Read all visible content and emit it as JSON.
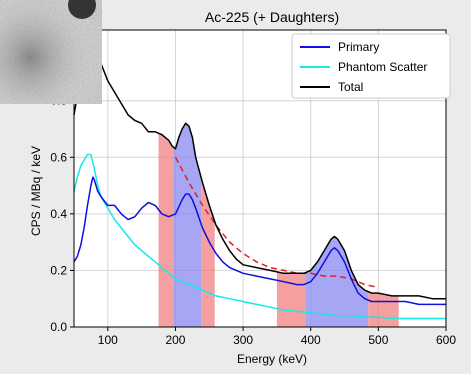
{
  "chart_data": {
    "type": "line",
    "title": "Ac-225 (+ Daughters)",
    "xlabel": "Energy (keV)",
    "ylabel": "CPS / MBq / keV",
    "xlim": [
      50,
      600
    ],
    "ylim": [
      0,
      1.05
    ],
    "xticks": [
      100,
      200,
      300,
      400,
      500,
      600
    ],
    "yticks": [
      0.0,
      0.2,
      0.4,
      0.6,
      0.8
    ],
    "grid": true,
    "legend_position": "top-right",
    "series": [
      {
        "name": "Primary",
        "color": "#1010e0",
        "x": [
          50,
          55,
          60,
          65,
          70,
          75,
          78,
          80,
          85,
          90,
          100,
          110,
          120,
          130,
          140,
          150,
          160,
          170,
          180,
          190,
          200,
          210,
          215,
          220,
          225,
          230,
          240,
          250,
          260,
          270,
          280,
          300,
          320,
          340,
          360,
          380,
          390,
          400,
          410,
          420,
          430,
          435,
          440,
          450,
          460,
          470,
          480,
          490,
          500,
          520,
          540,
          560,
          580,
          600
        ],
        "y": [
          0.23,
          0.25,
          0.29,
          0.35,
          0.43,
          0.5,
          0.53,
          0.52,
          0.48,
          0.46,
          0.43,
          0.43,
          0.4,
          0.38,
          0.39,
          0.42,
          0.44,
          0.43,
          0.4,
          0.39,
          0.4,
          0.45,
          0.47,
          0.47,
          0.45,
          0.42,
          0.35,
          0.3,
          0.26,
          0.23,
          0.21,
          0.19,
          0.18,
          0.17,
          0.16,
          0.15,
          0.15,
          0.16,
          0.19,
          0.23,
          0.27,
          0.28,
          0.27,
          0.23,
          0.17,
          0.12,
          0.1,
          0.09,
          0.09,
          0.09,
          0.09,
          0.08,
          0.08,
          0.08
        ]
      },
      {
        "name": "Phantom Scatter",
        "color": "#18e8e8",
        "x": [
          50,
          55,
          60,
          65,
          70,
          75,
          80,
          85,
          90,
          100,
          110,
          120,
          130,
          140,
          150,
          160,
          170,
          180,
          190,
          200,
          210,
          220,
          240,
          260,
          280,
          300,
          320,
          340,
          360,
          380,
          400,
          420,
          440,
          460,
          480,
          500,
          520,
          540,
          560,
          580,
          600
        ],
        "y": [
          0.48,
          0.53,
          0.57,
          0.59,
          0.61,
          0.61,
          0.56,
          0.5,
          0.46,
          0.42,
          0.38,
          0.35,
          0.32,
          0.29,
          0.27,
          0.25,
          0.23,
          0.21,
          0.19,
          0.17,
          0.16,
          0.15,
          0.13,
          0.11,
          0.1,
          0.09,
          0.08,
          0.07,
          0.06,
          0.055,
          0.05,
          0.045,
          0.04,
          0.04,
          0.035,
          0.035,
          0.03,
          0.03,
          0.03,
          0.03,
          0.03
        ]
      },
      {
        "name": "Total",
        "color": "#000000",
        "x": [
          50,
          55,
          60,
          65,
          70,
          75,
          80,
          90,
          100,
          110,
          120,
          130,
          140,
          150,
          160,
          170,
          180,
          190,
          195,
          200,
          205,
          210,
          215,
          220,
          225,
          230,
          240,
          250,
          260,
          270,
          280,
          290,
          300,
          320,
          340,
          360,
          380,
          390,
          400,
          410,
          420,
          430,
          435,
          440,
          450,
          460,
          470,
          480,
          490,
          500,
          520,
          540,
          560,
          580,
          600
        ],
        "y": [
          0.75,
          0.82,
          0.92,
          0.98,
          0.97,
          1.02,
          1.02,
          0.93,
          0.87,
          0.83,
          0.79,
          0.75,
          0.73,
          0.72,
          0.69,
          0.69,
          0.68,
          0.66,
          0.64,
          0.63,
          0.67,
          0.7,
          0.72,
          0.71,
          0.67,
          0.6,
          0.51,
          0.43,
          0.36,
          0.31,
          0.27,
          0.24,
          0.22,
          0.21,
          0.2,
          0.19,
          0.19,
          0.19,
          0.2,
          0.23,
          0.27,
          0.31,
          0.32,
          0.31,
          0.27,
          0.2,
          0.15,
          0.13,
          0.12,
          0.12,
          0.11,
          0.11,
          0.11,
          0.1,
          0.1
        ]
      }
    ],
    "background_fit": {
      "color": "#e02020",
      "style": "dashed",
      "x": [
        200,
        220,
        240,
        260,
        280,
        300,
        320,
        340,
        360,
        380,
        400,
        420,
        440,
        460,
        480,
        500
      ],
      "y": [
        0.6,
        0.51,
        0.43,
        0.36,
        0.3,
        0.26,
        0.23,
        0.21,
        0.2,
        0.19,
        0.19,
        0.18,
        0.18,
        0.17,
        0.15,
        0.14
      ]
    },
    "windows": [
      {
        "x0": 175,
        "x1": 197,
        "color": "#f08080"
      },
      {
        "x0": 197,
        "x1": 238,
        "color": "#8888f0"
      },
      {
        "x0": 238,
        "x1": 258,
        "color": "#f08080"
      },
      {
        "x0": 350,
        "x1": 392,
        "color": "#f08080"
      },
      {
        "x0": 392,
        "x1": 485,
        "color": "#8888f0"
      },
      {
        "x0": 485,
        "x1": 530,
        "color": "#f08080"
      }
    ],
    "colors": {
      "background": "#ebebeb",
      "plot_background": "#ffffff",
      "grid": "#d4d4d4"
    }
  }
}
